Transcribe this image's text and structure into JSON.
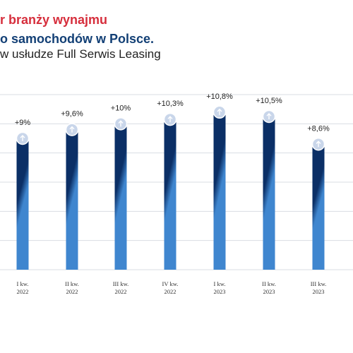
{
  "title": {
    "line1": "r branży wynajmu",
    "line2": "o samochodów w Polsce.",
    "line3": "w usłudze Full Serwis Leasing"
  },
  "colors": {
    "title_red": "#d62e3c",
    "title_navy": "#123f75",
    "bar_top": "#0b2f66",
    "bar_bottom": "#3f86cf",
    "grid": "#d9dde3"
  },
  "icon": "arrow-up-icon",
  "chart_data": {
    "type": "bar",
    "categories": [
      [
        "I kw.",
        "2022"
      ],
      [
        "II kw.",
        "2022"
      ],
      [
        "III kw.",
        "2022"
      ],
      [
        "IV kw.",
        "2022"
      ],
      [
        "I kw.",
        "2023"
      ],
      [
        "II kw.",
        "2023"
      ],
      [
        "III kw.",
        "2023"
      ]
    ],
    "values": [
      9,
      9.6,
      10,
      10.3,
      10.8,
      10.5,
      8.6
    ],
    "value_labels": [
      "+9%",
      "+9,6%",
      "+10%",
      "+10,3%",
      "+10,8%",
      "+10,5%",
      "+8,6%"
    ],
    "ylim": [
      0,
      12
    ],
    "grid": true,
    "legend": "none"
  }
}
